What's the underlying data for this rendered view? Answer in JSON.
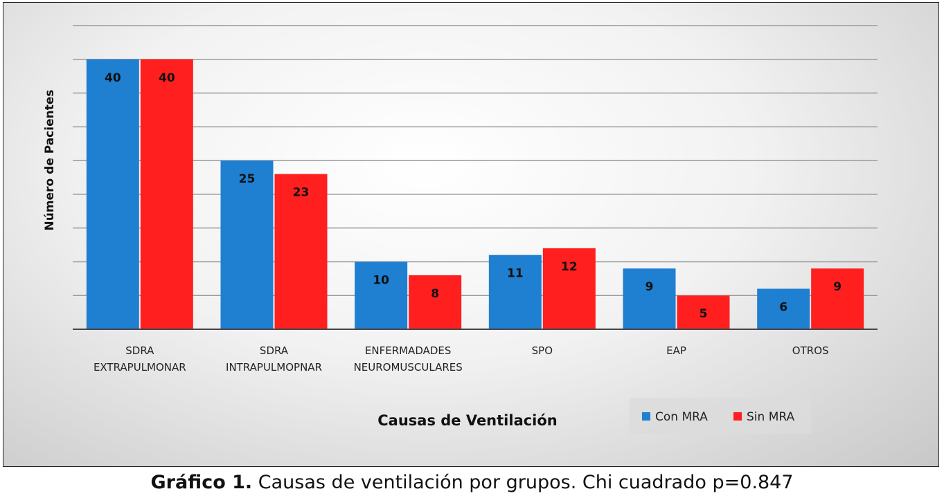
{
  "chart_data": {
    "type": "bar",
    "categories": [
      [
        "SDRA",
        "EXTRAPULMONAR"
      ],
      [
        "SDRA",
        "INTRAPULMOPNAR"
      ],
      [
        "ENFERMADADES",
        "NEUROMUSCULARES"
      ],
      [
        "SPO"
      ],
      [
        "EAP"
      ],
      [
        "OTROS"
      ]
    ],
    "series": [
      {
        "name": "Con MRA",
        "color": "#1f7fd0",
        "values": [
          40,
          25,
          10,
          11,
          9,
          6
        ]
      },
      {
        "name": "Sin MRA",
        "color": "#ff1f1f",
        "values": [
          40,
          23,
          8,
          12,
          5,
          9
        ]
      }
    ],
    "xlabel": "Causas de Ventilación",
    "ylabel": "Número de Pacientes",
    "ylim": [
      0,
      45
    ],
    "ytick_step": 5,
    "grid": true,
    "legend_position": "bottom-right"
  },
  "caption": {
    "label": "Gráfico 1.",
    "text": " Causas de ventilación por grupos. Chi cuadrado p=0.847"
  }
}
